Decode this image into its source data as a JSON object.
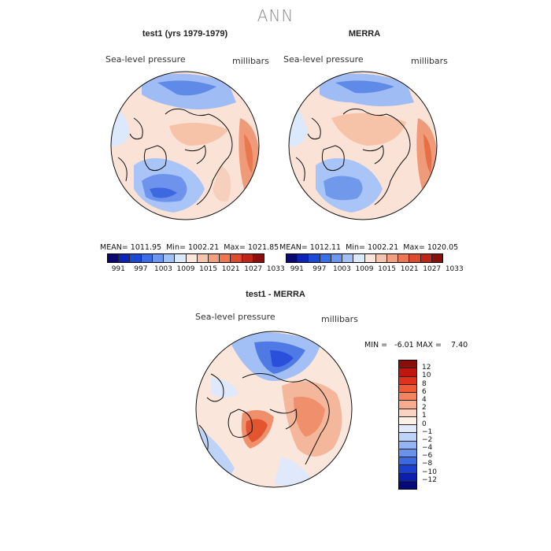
{
  "main_title": "ANN",
  "panel1": {
    "title": "test1 (yrs 1979-1979)",
    "variable": "Sea-level pressure",
    "units": "millibars",
    "stats": "MEAN= 1011.95  Min= 1002.21  Max= 1021.85"
  },
  "panel2": {
    "title": "MERRA",
    "variable": "Sea-level pressure",
    "units": "millibars",
    "stats": "MEAN= 1012.11  Min= 1002.21  Max= 1020.05"
  },
  "panel3": {
    "title": "test1 - MERRA",
    "variable": "Sea-level pressure",
    "units": "millibars",
    "stats": "MIN =   -6.01 MAX =    7.40"
  },
  "colorbar_h": {
    "colors": [
      "#08086e",
      "#0b22b8",
      "#1c48d6",
      "#3a6ee6",
      "#6a95f0",
      "#a3c0f6",
      "#dce8fb",
      "#fbe6dc",
      "#f6c3ac",
      "#f1a07f",
      "#ec7752",
      "#de4a2c",
      "#c02517",
      "#8a0e0a"
    ],
    "labels": [
      "991",
      "997",
      "1003",
      "1009",
      "1015",
      "1021",
      "1027",
      "1033"
    ]
  },
  "colorbar_v": {
    "colors": [
      "#8a0e0a",
      "#c3150f",
      "#e0311d",
      "#ef5a34",
      "#f4845f",
      "#f8ab8f",
      "#fbd3c2",
      "#fdf0e6",
      "#dfe9fb",
      "#bdd3f7",
      "#94b5f2",
      "#6a92ec",
      "#3d68e2",
      "#1b40cf",
      "#0a1fb0",
      "#06087a"
    ],
    "labels": [
      "12",
      "10",
      "8",
      "6",
      "4",
      "2",
      "1",
      "0",
      "−1",
      "−2",
      "−4",
      "−6",
      "−8",
      "−10",
      "−12"
    ]
  }
}
